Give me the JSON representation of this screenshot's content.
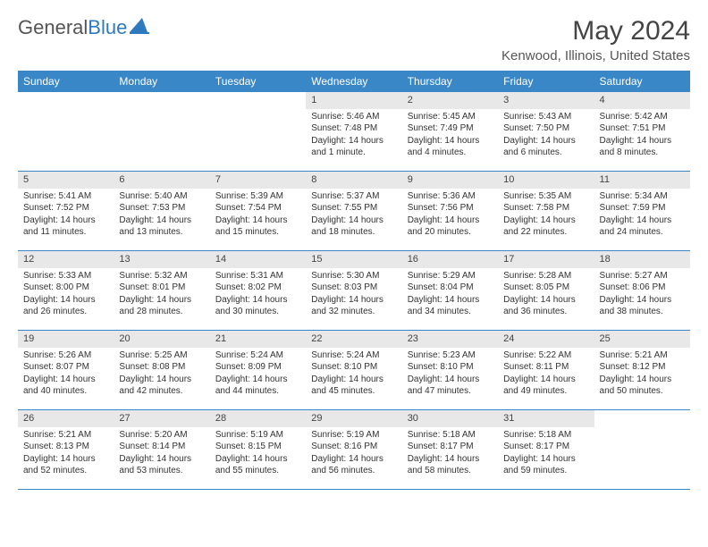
{
  "logo": {
    "text_gray": "General",
    "text_blue": "Blue"
  },
  "header": {
    "month_title": "May 2024",
    "location": "Kenwood, Illinois, United States"
  },
  "colors": {
    "header_bg": "#3a87c8",
    "daynum_bg": "#e8e8e8",
    "row_border": "#3a87c8"
  },
  "day_names": [
    "Sunday",
    "Monday",
    "Tuesday",
    "Wednesday",
    "Thursday",
    "Friday",
    "Saturday"
  ],
  "weeks": [
    [
      {
        "empty": true
      },
      {
        "empty": true
      },
      {
        "empty": true
      },
      {
        "num": "1",
        "sunrise": "Sunrise: 5:46 AM",
        "sunset": "Sunset: 7:48 PM",
        "daylight": "Daylight: 14 hours and 1 minute."
      },
      {
        "num": "2",
        "sunrise": "Sunrise: 5:45 AM",
        "sunset": "Sunset: 7:49 PM",
        "daylight": "Daylight: 14 hours and 4 minutes."
      },
      {
        "num": "3",
        "sunrise": "Sunrise: 5:43 AM",
        "sunset": "Sunset: 7:50 PM",
        "daylight": "Daylight: 14 hours and 6 minutes."
      },
      {
        "num": "4",
        "sunrise": "Sunrise: 5:42 AM",
        "sunset": "Sunset: 7:51 PM",
        "daylight": "Daylight: 14 hours and 8 minutes."
      }
    ],
    [
      {
        "num": "5",
        "sunrise": "Sunrise: 5:41 AM",
        "sunset": "Sunset: 7:52 PM",
        "daylight": "Daylight: 14 hours and 11 minutes."
      },
      {
        "num": "6",
        "sunrise": "Sunrise: 5:40 AM",
        "sunset": "Sunset: 7:53 PM",
        "daylight": "Daylight: 14 hours and 13 minutes."
      },
      {
        "num": "7",
        "sunrise": "Sunrise: 5:39 AM",
        "sunset": "Sunset: 7:54 PM",
        "daylight": "Daylight: 14 hours and 15 minutes."
      },
      {
        "num": "8",
        "sunrise": "Sunrise: 5:37 AM",
        "sunset": "Sunset: 7:55 PM",
        "daylight": "Daylight: 14 hours and 18 minutes."
      },
      {
        "num": "9",
        "sunrise": "Sunrise: 5:36 AM",
        "sunset": "Sunset: 7:56 PM",
        "daylight": "Daylight: 14 hours and 20 minutes."
      },
      {
        "num": "10",
        "sunrise": "Sunrise: 5:35 AM",
        "sunset": "Sunset: 7:58 PM",
        "daylight": "Daylight: 14 hours and 22 minutes."
      },
      {
        "num": "11",
        "sunrise": "Sunrise: 5:34 AM",
        "sunset": "Sunset: 7:59 PM",
        "daylight": "Daylight: 14 hours and 24 minutes."
      }
    ],
    [
      {
        "num": "12",
        "sunrise": "Sunrise: 5:33 AM",
        "sunset": "Sunset: 8:00 PM",
        "daylight": "Daylight: 14 hours and 26 minutes."
      },
      {
        "num": "13",
        "sunrise": "Sunrise: 5:32 AM",
        "sunset": "Sunset: 8:01 PM",
        "daylight": "Daylight: 14 hours and 28 minutes."
      },
      {
        "num": "14",
        "sunrise": "Sunrise: 5:31 AM",
        "sunset": "Sunset: 8:02 PM",
        "daylight": "Daylight: 14 hours and 30 minutes."
      },
      {
        "num": "15",
        "sunrise": "Sunrise: 5:30 AM",
        "sunset": "Sunset: 8:03 PM",
        "daylight": "Daylight: 14 hours and 32 minutes."
      },
      {
        "num": "16",
        "sunrise": "Sunrise: 5:29 AM",
        "sunset": "Sunset: 8:04 PM",
        "daylight": "Daylight: 14 hours and 34 minutes."
      },
      {
        "num": "17",
        "sunrise": "Sunrise: 5:28 AM",
        "sunset": "Sunset: 8:05 PM",
        "daylight": "Daylight: 14 hours and 36 minutes."
      },
      {
        "num": "18",
        "sunrise": "Sunrise: 5:27 AM",
        "sunset": "Sunset: 8:06 PM",
        "daylight": "Daylight: 14 hours and 38 minutes."
      }
    ],
    [
      {
        "num": "19",
        "sunrise": "Sunrise: 5:26 AM",
        "sunset": "Sunset: 8:07 PM",
        "daylight": "Daylight: 14 hours and 40 minutes."
      },
      {
        "num": "20",
        "sunrise": "Sunrise: 5:25 AM",
        "sunset": "Sunset: 8:08 PM",
        "daylight": "Daylight: 14 hours and 42 minutes."
      },
      {
        "num": "21",
        "sunrise": "Sunrise: 5:24 AM",
        "sunset": "Sunset: 8:09 PM",
        "daylight": "Daylight: 14 hours and 44 minutes."
      },
      {
        "num": "22",
        "sunrise": "Sunrise: 5:24 AM",
        "sunset": "Sunset: 8:10 PM",
        "daylight": "Daylight: 14 hours and 45 minutes."
      },
      {
        "num": "23",
        "sunrise": "Sunrise: 5:23 AM",
        "sunset": "Sunset: 8:10 PM",
        "daylight": "Daylight: 14 hours and 47 minutes."
      },
      {
        "num": "24",
        "sunrise": "Sunrise: 5:22 AM",
        "sunset": "Sunset: 8:11 PM",
        "daylight": "Daylight: 14 hours and 49 minutes."
      },
      {
        "num": "25",
        "sunrise": "Sunrise: 5:21 AM",
        "sunset": "Sunset: 8:12 PM",
        "daylight": "Daylight: 14 hours and 50 minutes."
      }
    ],
    [
      {
        "num": "26",
        "sunrise": "Sunrise: 5:21 AM",
        "sunset": "Sunset: 8:13 PM",
        "daylight": "Daylight: 14 hours and 52 minutes."
      },
      {
        "num": "27",
        "sunrise": "Sunrise: 5:20 AM",
        "sunset": "Sunset: 8:14 PM",
        "daylight": "Daylight: 14 hours and 53 minutes."
      },
      {
        "num": "28",
        "sunrise": "Sunrise: 5:19 AM",
        "sunset": "Sunset: 8:15 PM",
        "daylight": "Daylight: 14 hours and 55 minutes."
      },
      {
        "num": "29",
        "sunrise": "Sunrise: 5:19 AM",
        "sunset": "Sunset: 8:16 PM",
        "daylight": "Daylight: 14 hours and 56 minutes."
      },
      {
        "num": "30",
        "sunrise": "Sunrise: 5:18 AM",
        "sunset": "Sunset: 8:17 PM",
        "daylight": "Daylight: 14 hours and 58 minutes."
      },
      {
        "num": "31",
        "sunrise": "Sunrise: 5:18 AM",
        "sunset": "Sunset: 8:17 PM",
        "daylight": "Daylight: 14 hours and 59 minutes."
      },
      {
        "empty": true
      }
    ]
  ]
}
